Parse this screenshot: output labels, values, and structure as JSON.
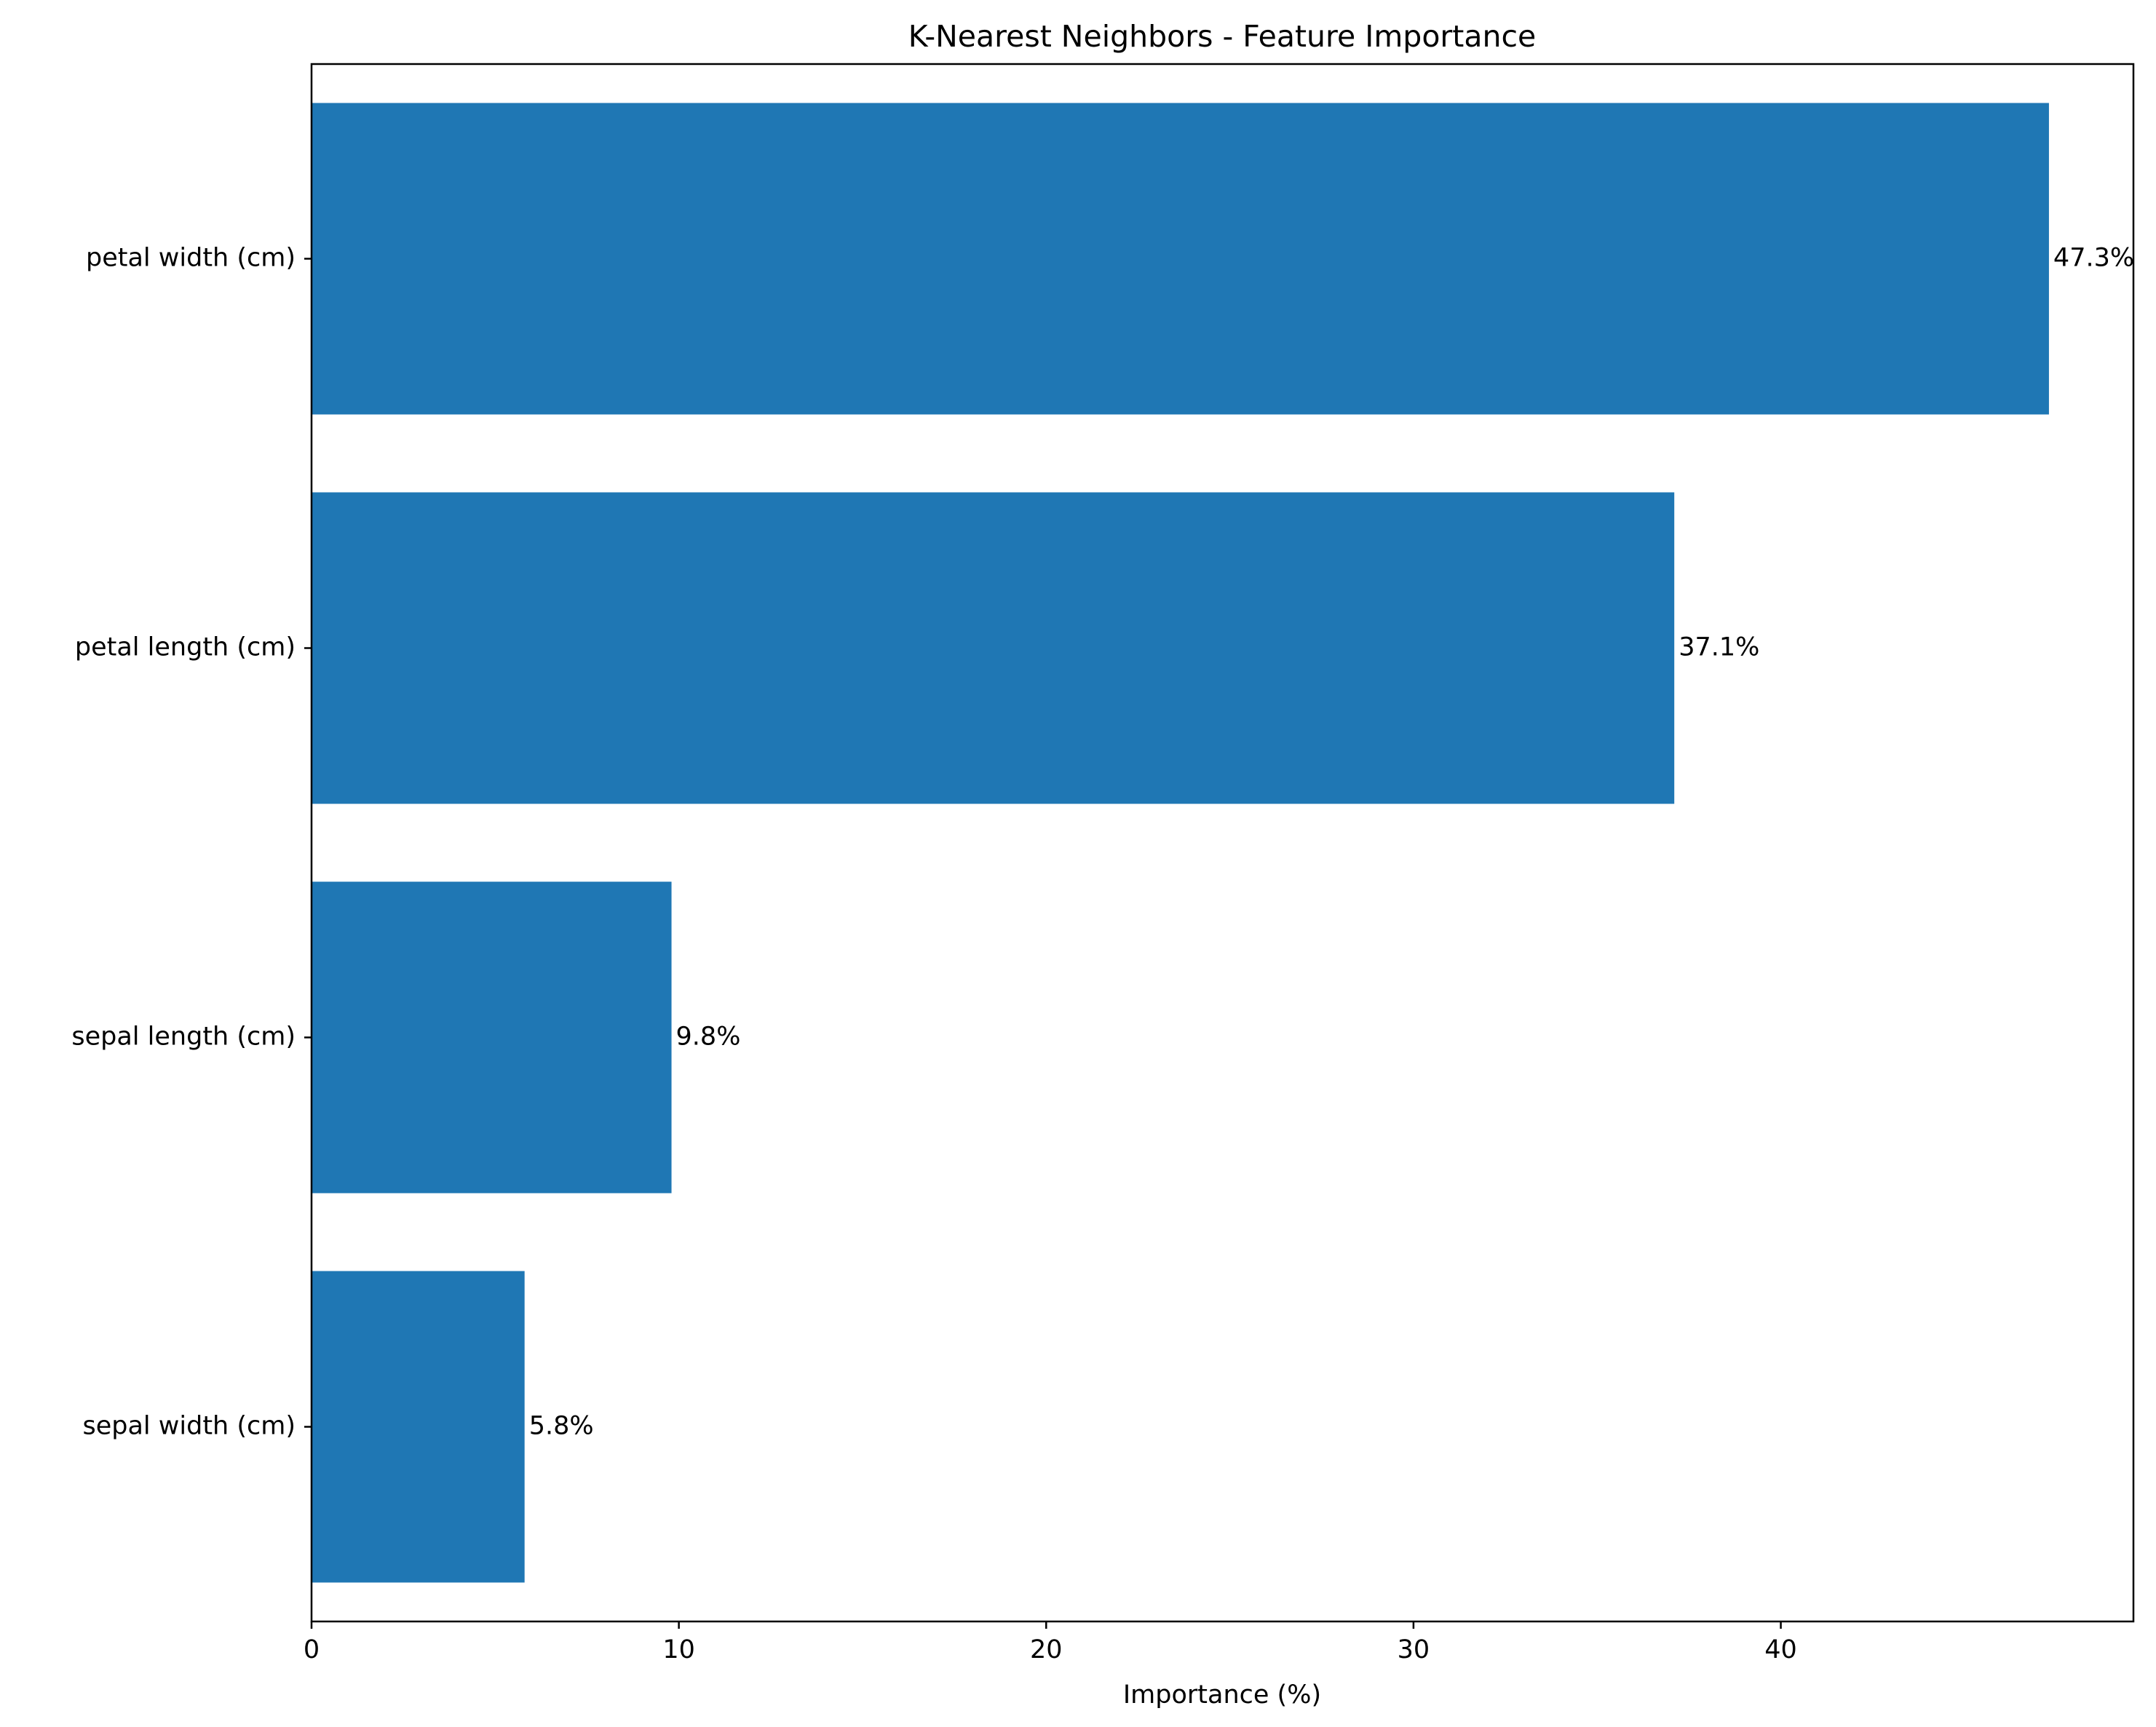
{
  "chart_data": {
    "type": "bar",
    "orientation": "horizontal",
    "title": "K-Nearest Neighbors - Feature Importance",
    "xlabel": "Importance (%)",
    "ylabel": "",
    "categories": [
      "sepal width (cm)",
      "sepal length (cm)",
      "petal length (cm)",
      "petal width (cm)"
    ],
    "values": [
      5.8,
      9.8,
      37.1,
      47.3
    ],
    "data_labels": [
      "5.8%",
      "9.8%",
      "37.1%",
      "47.3%"
    ],
    "xlim": [
      0,
      49.6
    ],
    "xticks": [
      0,
      10,
      20,
      30,
      40
    ],
    "xtick_labels": [
      "0",
      "10",
      "20",
      "30",
      "40"
    ],
    "grid": false,
    "legend": "none",
    "bar_color": "#1f77b4"
  }
}
